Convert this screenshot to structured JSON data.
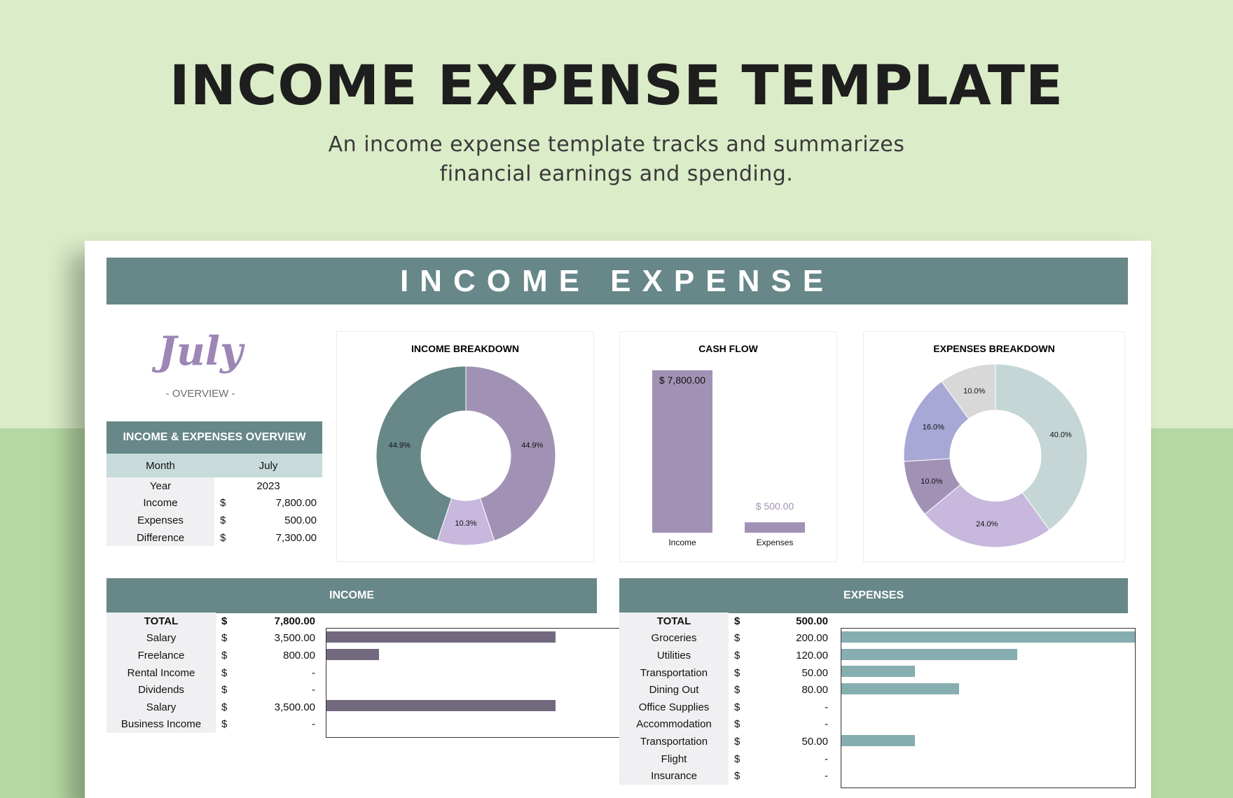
{
  "header": {
    "title": "INCOME EXPENSE TEMPLATE",
    "subtitle_line1": "An income expense template tracks and summarizes",
    "subtitle_line2": "financial earnings and spending."
  },
  "sheet": {
    "banner": "INCOME EXPENSE",
    "month_script": "July",
    "overview_label": "- OVERVIEW -"
  },
  "overview_table": {
    "title": "INCOME & EXPENSES OVERVIEW",
    "month_label": "Month",
    "month_value": "July",
    "year_label": "Year",
    "year_value": "2023",
    "rows": [
      {
        "label": "Income",
        "cur": "$",
        "value": "7,800.00"
      },
      {
        "label": "Expenses",
        "cur": "$",
        "value": "500.00"
      },
      {
        "label": "Difference",
        "cur": "$",
        "value": "7,300.00"
      }
    ]
  },
  "colors": {
    "teal": "#678788",
    "purple": "#a192b5",
    "lilac": "#c8b8dd",
    "bar_purple": "#72697f",
    "bar_teal": "#86aeb0"
  },
  "chart_data": [
    {
      "type": "pie",
      "title": "INCOME BREAKDOWN",
      "slices": [
        {
          "label": "44.9%",
          "value": 44.9,
          "color": "#a192b5"
        },
        {
          "label": "10.3%",
          "value": 10.3,
          "color": "#c8b8dd"
        },
        {
          "label": "44.9%",
          "value": 44.9,
          "color": "#678788"
        }
      ]
    },
    {
      "type": "bar",
      "title": "CASH FLOW",
      "categories": [
        "Income",
        "Expenses"
      ],
      "values": [
        7800,
        500
      ],
      "value_labels": [
        "$ 7,800.00",
        "$ 500.00"
      ],
      "colors": [
        "#a192b5",
        "#a192b5"
      ],
      "ylim": [
        0,
        7800
      ]
    },
    {
      "type": "pie",
      "title": "EXPENSES BREAKDOWN",
      "slices": [
        {
          "label": "40.0%",
          "value": 40.0,
          "color": "#c4d6d6"
        },
        {
          "label": "24.0%",
          "value": 24.0,
          "color": "#c8b8dd"
        },
        {
          "label": "10.0%",
          "value": 10.0,
          "color": "#a192b5"
        },
        {
          "label": "16.0%",
          "value": 16.0,
          "color": "#a7a8d6"
        },
        {
          "label": "10.0%",
          "value": 10.0,
          "color": "#d8d8d8"
        }
      ]
    }
  ],
  "income": {
    "header": "INCOME",
    "total_label": "TOTAL",
    "total_cur": "$",
    "total_value": "7,800.00",
    "max": 3500,
    "rows": [
      {
        "label": "Salary",
        "cur": "$",
        "value": "3,500.00",
        "amount": 3500
      },
      {
        "label": "Freelance",
        "cur": "$",
        "value": "800.00",
        "amount": 800
      },
      {
        "label": "Rental Income",
        "cur": "$",
        "value": "-",
        "amount": 0
      },
      {
        "label": "Dividends",
        "cur": "$",
        "value": "-",
        "amount": 0
      },
      {
        "label": "Salary",
        "cur": "$",
        "value": "3,500.00",
        "amount": 3500
      },
      {
        "label": "Business Income",
        "cur": "$",
        "value": "-",
        "amount": 0
      }
    ]
  },
  "expenses": {
    "header": "EXPENSES",
    "total_label": "TOTAL",
    "total_cur": "$",
    "total_value": "500.00",
    "max": 200,
    "rows": [
      {
        "label": "Groceries",
        "cur": "$",
        "value": "200.00",
        "amount": 200
      },
      {
        "label": "Utilities",
        "cur": "$",
        "value": "120.00",
        "amount": 120
      },
      {
        "label": "Transportation",
        "cur": "$",
        "value": "50.00",
        "amount": 50
      },
      {
        "label": "Dining Out",
        "cur": "$",
        "value": "80.00",
        "amount": 80
      },
      {
        "label": "Office Supplies",
        "cur": "$",
        "value": "-",
        "amount": 0
      },
      {
        "label": "Accommodation",
        "cur": "$",
        "value": "-",
        "amount": 0
      },
      {
        "label": "Transportation",
        "cur": "$",
        "value": "50.00",
        "amount": 50
      },
      {
        "label": "Flight",
        "cur": "$",
        "value": "-",
        "amount": 0
      },
      {
        "label": "Insurance",
        "cur": "$",
        "value": "-",
        "amount": 0
      }
    ]
  }
}
